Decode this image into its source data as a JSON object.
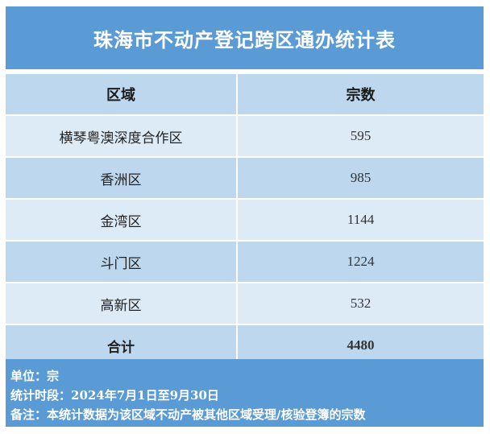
{
  "title": "珠海市不动产登记跨区通办统计表",
  "table": {
    "headers": [
      "区域",
      "宗数"
    ],
    "rows": [
      {
        "region": "横琴粤澳深度合作区",
        "count": "595"
      },
      {
        "region": "香洲区",
        "count": "985"
      },
      {
        "region": "金湾区",
        "count": "1144"
      },
      {
        "region": "斗门区",
        "count": "1224"
      },
      {
        "region": "高新区",
        "count": "532"
      }
    ],
    "total": {
      "label": "合计",
      "count": "4480"
    }
  },
  "footer": {
    "unit": "单位：宗",
    "period": "统计时段：2024年7月1日至9月30日",
    "note": "备注：本统计数据为该区域不动产被其他区域受理/核验登簿的宗数"
  }
}
